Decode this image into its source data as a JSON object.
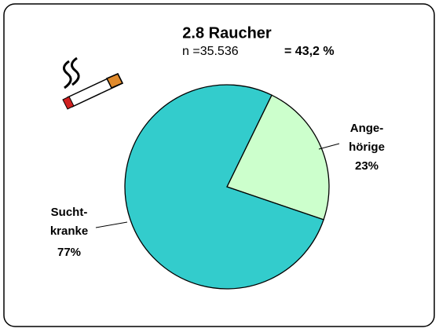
{
  "chart_data": {
    "type": "pie",
    "title": "2.8  Raucher",
    "subtitle": "n =35.536",
    "annotation": "= 43,2 %",
    "categories": [
      "Ange-\nhörige",
      "Sucht-\nkranke"
    ],
    "values": [
      23,
      77
    ],
    "value_labels": [
      "23%",
      "77%"
    ],
    "colors": [
      "#ccffcc",
      "#33cccc"
    ]
  }
}
